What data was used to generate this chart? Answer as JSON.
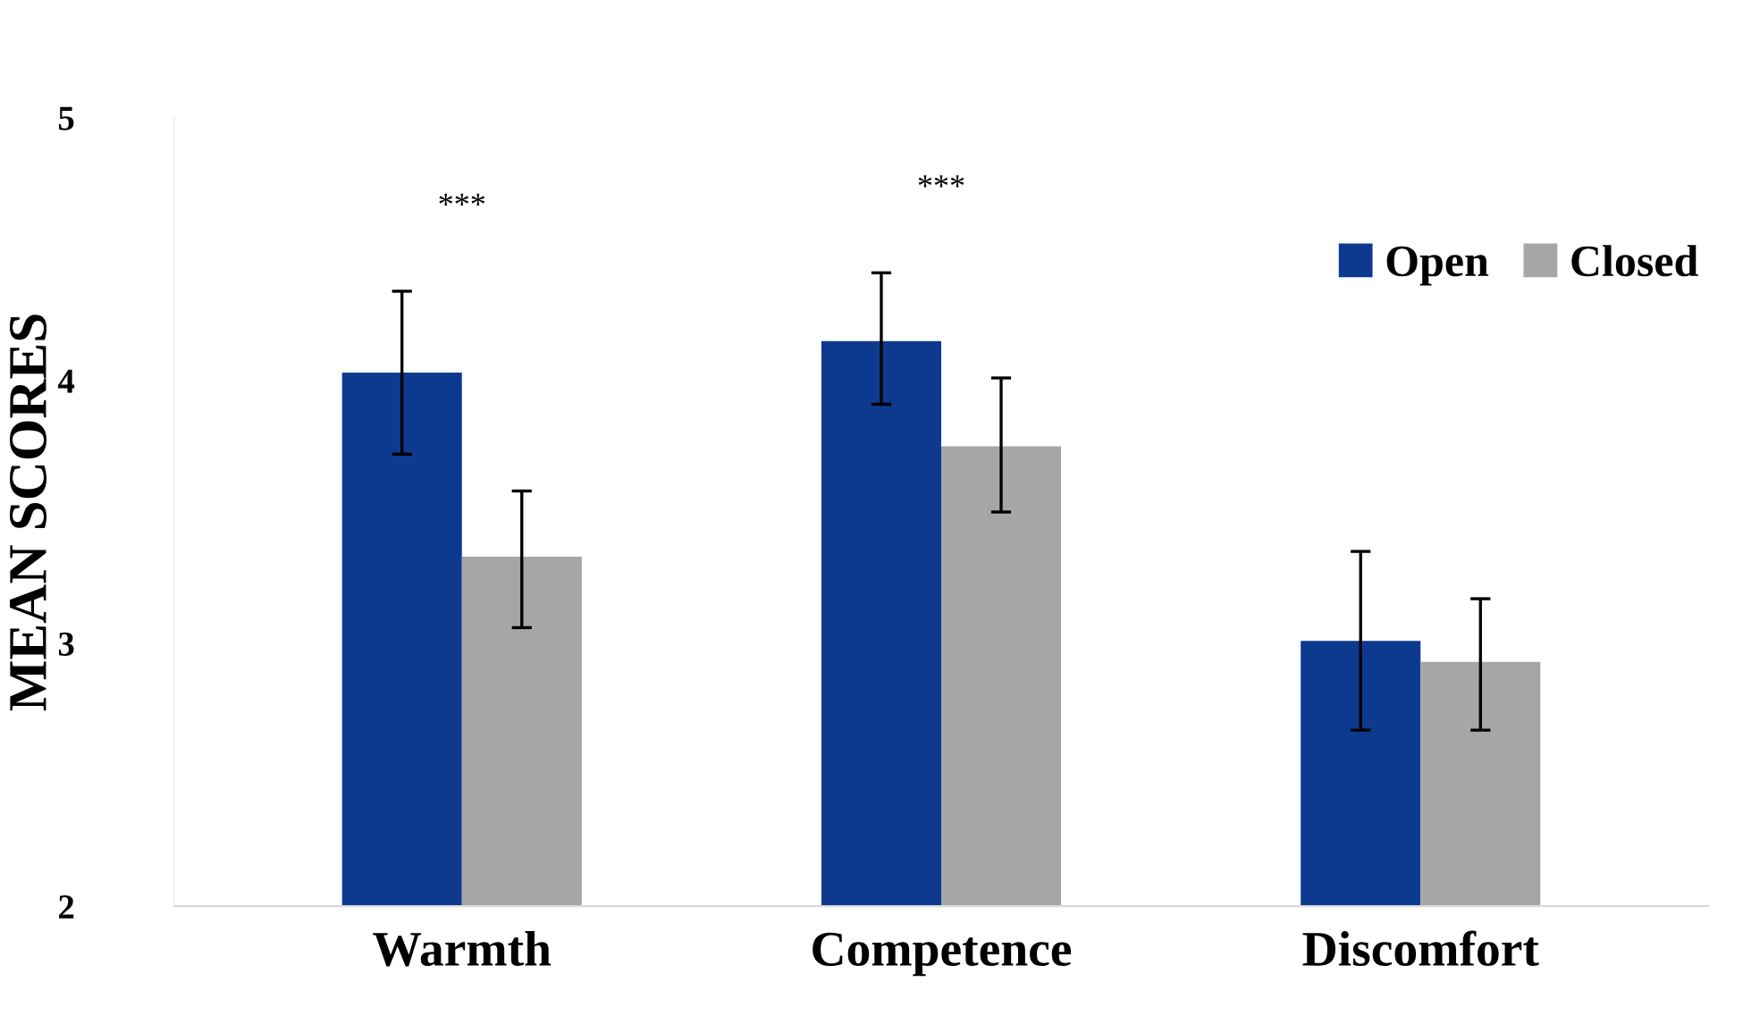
{
  "chart_data": {
    "type": "bar",
    "ylabel": "MEAN SCORES",
    "categories": [
      "Warmth",
      "Competence",
      "Discomfort"
    ],
    "series": [
      {
        "name": "Open",
        "color": "#0d3a8f",
        "values": [
          4.03,
          4.15,
          3.01
        ],
        "errors": [
          [
            3.72,
            4.34
          ],
          [
            3.91,
            4.41
          ],
          [
            2.67,
            3.35
          ]
        ]
      },
      {
        "name": "Closed",
        "color": "#a6a6a6",
        "values": [
          3.33,
          3.75,
          2.93
        ],
        "errors": [
          [
            3.06,
            3.58
          ],
          [
            3.5,
            4.01
          ],
          [
            2.67,
            3.17
          ]
        ]
      }
    ],
    "ylim": [
      2,
      5
    ],
    "yticks": [
      2,
      3,
      4,
      5
    ],
    "grid": false,
    "legend": "top right",
    "annotations": [
      "***",
      "***"
    ]
  }
}
